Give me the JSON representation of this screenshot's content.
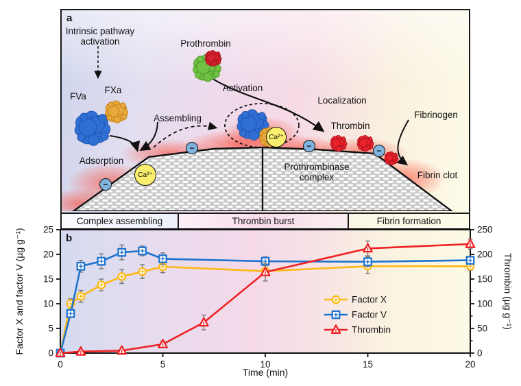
{
  "colors": {
    "fva_blue": "#2f6fd3",
    "fva_edge": "#1a4fa6",
    "fxa_orange": "#e9a83d",
    "fxa_edge": "#bd7d12",
    "prothrombin_green": "#6fc043",
    "prothrombin_green_edge": "#3f8f1f",
    "prothrombin_red": "#d6202c",
    "prothrombin_red_edge": "#9c0f1d",
    "thrombin_red": "#e8232b",
    "thrombin_red_edge": "#a90f1b",
    "factor_x_line": "#FDB813",
    "factor_v_line": "#1E73CE",
    "thrombin_line": "#EE2123",
    "error_bar": "#777777",
    "membrane_gray": "#c9c9c9",
    "ca_yellow": "#f9ee6e",
    "minus_blue": "#7fb3de"
  },
  "panel_a": {
    "label": "a",
    "texts": {
      "intrinsic_line1": "Intrinsic pathway",
      "intrinsic_line2": "activation",
      "fva": "FVa",
      "fxa": "FXa",
      "prothrombin": "Prothrombin",
      "activation": "Activation",
      "assembling": "Assembling",
      "localization": "Localization",
      "thrombin": "Thrombin",
      "fibrinogen": "Fibrinogen",
      "adsorption": "Adsorption",
      "fibrin_clot": "Fibrin clot",
      "prothrombinase_line1": "Prothrombinase",
      "prothrombinase_line2": "complex",
      "ca_label": "Ca²⁺",
      "minus_label": "−"
    }
  },
  "phase_bands": [
    "Complex assembling",
    "Thrombin burst",
    "Fibrin formation"
  ],
  "chart_data": {
    "type": "line",
    "panel_label": "b",
    "xlabel": "Time (min)",
    "ylabel_left": "Factor X and factor V (µg g⁻¹)",
    "ylabel_right": "Thrombin (µg g⁻¹)",
    "xlim": [
      0,
      20
    ],
    "xticks": [
      0,
      5,
      10,
      15,
      20
    ],
    "ylim_left": [
      0,
      25
    ],
    "yticks_left": [
      0,
      5,
      10,
      15,
      20,
      25
    ],
    "ylim_right": [
      0,
      250
    ],
    "yticks_right": [
      0,
      50,
      100,
      150,
      200,
      250
    ],
    "grid": false,
    "legend_position": "right-middle",
    "series": [
      {
        "name": "Factor X",
        "axis": "left",
        "marker": "circle",
        "color": "#FDB813",
        "x": [
          0,
          0.5,
          1,
          2,
          3,
          4,
          5,
          10,
          15,
          20
        ],
        "y": [
          0,
          10,
          11.5,
          13.8,
          15.5,
          16.5,
          17.5,
          16.6,
          17.6,
          17.6
        ],
        "err": [
          0,
          1.0,
          1.2,
          1.2,
          1.4,
          1.4,
          1.2,
          0,
          1.5,
          0.8
        ]
      },
      {
        "name": "Factor V",
        "axis": "left",
        "marker": "square",
        "color": "#1E73CE",
        "x": [
          0,
          0.5,
          1,
          2,
          3,
          4,
          5,
          10,
          15,
          20
        ],
        "y": [
          0,
          8,
          17.6,
          18.6,
          20.4,
          20.7,
          19.1,
          18.6,
          18.5,
          18.8
        ],
        "err": [
          0,
          0,
          1.2,
          1.5,
          1.5,
          1.0,
          1.2,
          0.9,
          1.0,
          0.8
        ]
      },
      {
        "name": "Thrombin",
        "axis": "right",
        "marker": "triangle",
        "color": "#EE2123",
        "x": [
          0,
          1,
          3,
          5,
          7,
          10,
          15,
          20
        ],
        "y": [
          0,
          3,
          5,
          18,
          62,
          164,
          212,
          221
        ],
        "err": [
          0,
          0,
          0,
          6,
          15,
          18,
          15,
          10
        ]
      }
    ],
    "legend": [
      "Factor X",
      "Factor V",
      "Thrombin"
    ]
  }
}
